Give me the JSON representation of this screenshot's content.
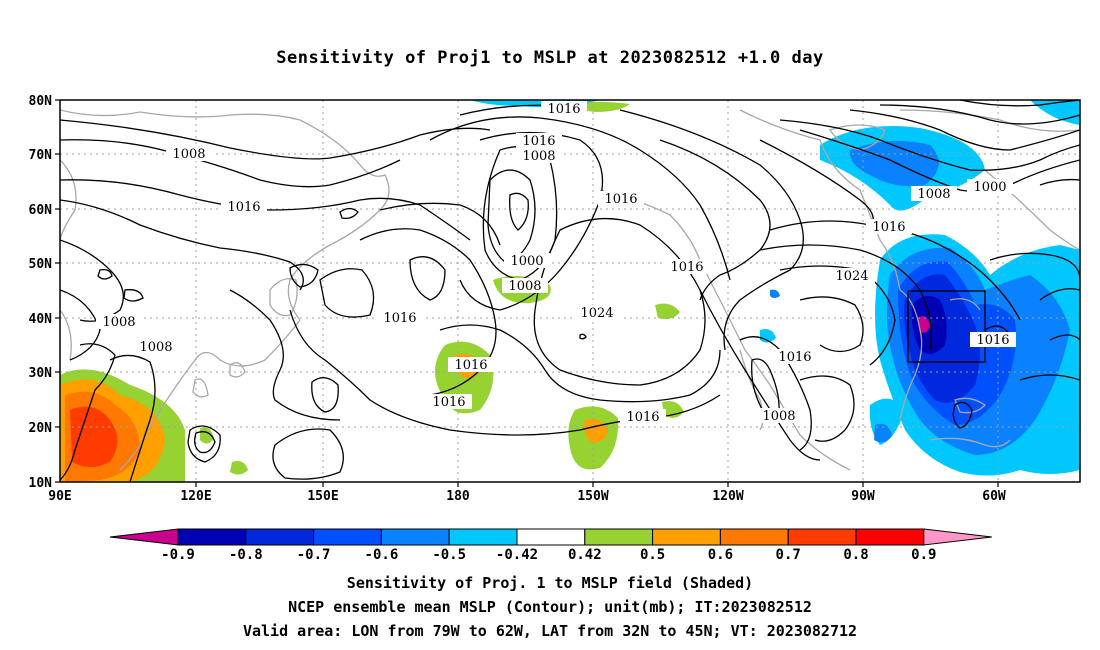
{
  "title": "Sensitivity of Proj1 to MSLP at 2023082512 +1.0 day",
  "lat_labels": [
    "80N",
    "70N",
    "60N",
    "50N",
    "40N",
    "30N",
    "20N",
    "10N"
  ],
  "lon_labels": [
    "90E",
    "120E",
    "150E",
    "180",
    "150W",
    "120W",
    "90W",
    "60W"
  ],
  "contour_labels": [
    "1016",
    "1016",
    "1008",
    "1008",
    "1016",
    "1016",
    "1000",
    "1008",
    "1016",
    "1024",
    "1016",
    "1008",
    "1008",
    "1016",
    "1016",
    "1016",
    "1016",
    "1008",
    "1024",
    "1008",
    "1000",
    "1016",
    "1016"
  ],
  "colorbar": {
    "labels": [
      "-0.9",
      "-0.8",
      "-0.7",
      "-0.6",
      "-0.5",
      "-0.42",
      "0.42",
      "0.5",
      "0.6",
      "0.7",
      "0.8",
      "0.9"
    ],
    "colors": [
      "#c8008c",
      "#0000b4",
      "#0028dc",
      "#0050ff",
      "#0a82ff",
      "#00c8ff",
      "#ffffff",
      "#96d232",
      "#ffa000",
      "#ff7800",
      "#ff3c00",
      "#ff0000",
      "#ff96c8"
    ]
  },
  "caption": {
    "line1": "Sensitivity of Proj. 1 to MSLP field (Shaded)",
    "line2": "NCEP ensemble mean MSLP (Contour); unit(mb); IT:2023082512",
    "line3": "Valid area: LON from 79W to 62W, LAT from 32N to 45N; VT: 2023082712"
  }
}
